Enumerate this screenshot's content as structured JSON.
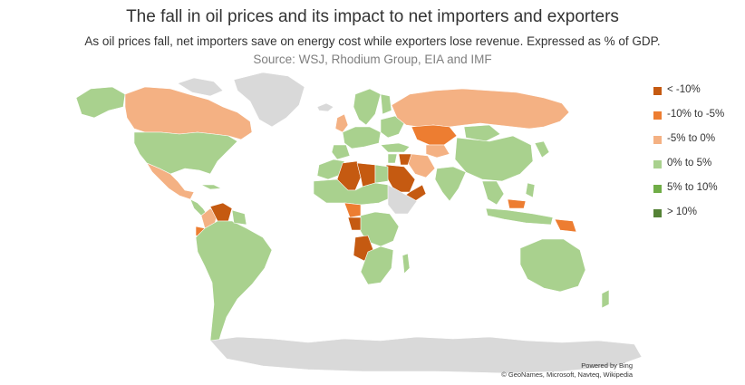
{
  "title": "The fall in oil prices and its impact to net importers and exporters",
  "subtitle": "As oil prices fall, net importers save on energy cost while exporters lose revenue. Expressed as % of GDP.",
  "source": "Source: WSJ, Rhodium Group, EIA and IMF",
  "legend": [
    {
      "label": "< -10%",
      "color": "#c0504d"
    },
    {
      "label": "-10% to -5%",
      "color": "#f07d37"
    },
    {
      "label": "-5% to 0%",
      "color": "#f4b183"
    },
    {
      "label": "0% to 5%",
      "color": "#a9d18e"
    },
    {
      "label": "5% to 10%",
      "color": "#70ad47"
    },
    {
      "label": "> 10%",
      "color": "#548235"
    }
  ],
  "colors": {
    "no_data": "#d9d9d9",
    "lt_minus10": "#c55a11",
    "minus10_to_minus5": "#ed7d31",
    "minus5_to_0": "#f4b183",
    "zero_to_5": "#a9d18e",
    "five_to_10": "#70ad47",
    "gt_10": "#548235"
  },
  "credits": {
    "powered": "Powered by Bing",
    "copyright": "© GeoNames, Microsoft, Navteq, Wikipedia"
  }
}
